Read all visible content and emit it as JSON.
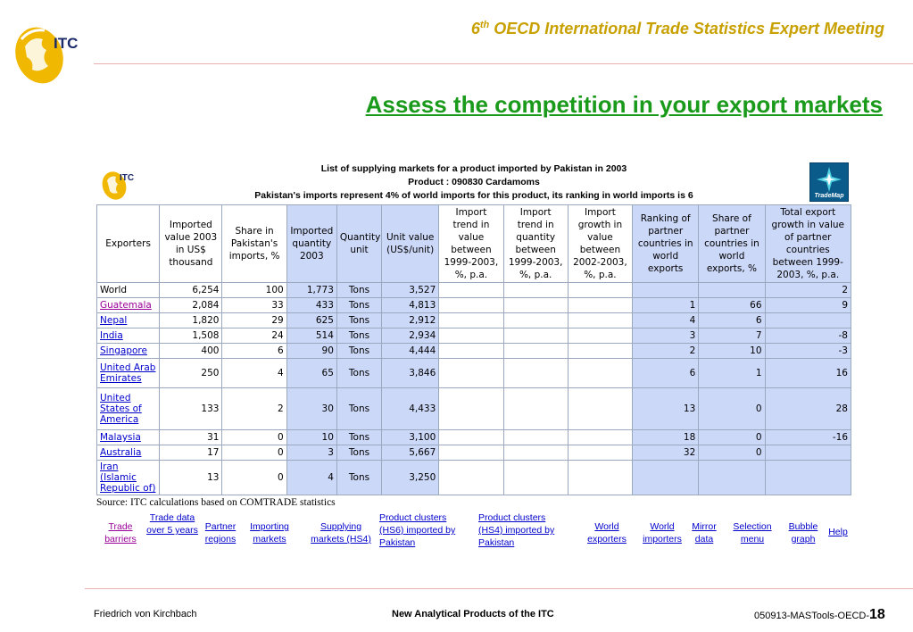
{
  "header": {
    "title_prefix": "6",
    "title_sup": "th",
    "title_rest": " OECD International Trade Statistics Expert Meeting",
    "logo_text": "ITC"
  },
  "slide": {
    "title": "Assess the competition in your export markets"
  },
  "screenshot": {
    "logo_text": "ITC",
    "heading_line1": "List of supplying markets for a product imported by Pakistan in 2003",
    "heading_line2": "Product : 090830 Cardamoms",
    "heading_line3": "Pakistan's imports represent 4% of world imports for this product, its ranking in world imports is 6",
    "trademap_label": "TradeMap",
    "columns": [
      "Exporters",
      "Imported value 2003 in US$ thousand",
      "Share in Pakistan's imports, %",
      "Imported quantity 2003",
      "Quantity unit",
      "Unit value (US$/unit)",
      "Import trend in value between 1999-2003, %, p.a.",
      "Import trend in quantity between 1999-2003, %, p.a.",
      "Import growth in value between 2002-2003, %, p.a.",
      "Ranking of partner countries in world exports",
      "Share of partner countries in world exports, %",
      "Total export growth in value of partner countries between 1999-2003, %, p.a."
    ],
    "rows": [
      {
        "exporter": "World",
        "link": false,
        "value": "6,254",
        "share": "100",
        "qty": "1,773",
        "unit": "Tons",
        "unit_value": "3,527",
        "trend_v": "",
        "trend_q": "",
        "growth": "",
        "rank": "",
        "wshare": "",
        "tgrowth": "2"
      },
      {
        "exporter": "Guatemala",
        "link": true,
        "visited": true,
        "value": "2,084",
        "share": "33",
        "qty": "433",
        "unit": "Tons",
        "unit_value": "4,813",
        "trend_v": "",
        "trend_q": "",
        "growth": "",
        "rank": "1",
        "wshare": "66",
        "tgrowth": "9"
      },
      {
        "exporter": "Nepal",
        "link": true,
        "value": "1,820",
        "share": "29",
        "qty": "625",
        "unit": "Tons",
        "unit_value": "2,912",
        "trend_v": "",
        "trend_q": "",
        "growth": "",
        "rank": "4",
        "wshare": "6",
        "tgrowth": ""
      },
      {
        "exporter": "India",
        "link": true,
        "value": "1,508",
        "share": "24",
        "qty": "514",
        "unit": "Tons",
        "unit_value": "2,934",
        "trend_v": "",
        "trend_q": "",
        "growth": "",
        "rank": "3",
        "wshare": "7",
        "tgrowth": "-8"
      },
      {
        "exporter": "Singapore",
        "link": true,
        "value": "400",
        "share": "6",
        "qty": "90",
        "unit": "Tons",
        "unit_value": "4,444",
        "trend_v": "",
        "trend_q": "",
        "growth": "",
        "rank": "2",
        "wshare": "10",
        "tgrowth": "-3"
      },
      {
        "exporter": "United Arab Emirates",
        "link": true,
        "value": "250",
        "share": "4",
        "qty": "65",
        "unit": "Tons",
        "unit_value": "3,846",
        "trend_v": "",
        "trend_q": "",
        "growth": "",
        "rank": "6",
        "wshare": "1",
        "tgrowth": "16"
      },
      {
        "exporter": "United States of America",
        "link": true,
        "value": "133",
        "share": "2",
        "qty": "30",
        "unit": "Tons",
        "unit_value": "4,433",
        "trend_v": "",
        "trend_q": "",
        "growth": "",
        "rank": "13",
        "wshare": "0",
        "tgrowth": "28"
      },
      {
        "exporter": "Malaysia",
        "link": true,
        "value": "31",
        "share": "0",
        "qty": "10",
        "unit": "Tons",
        "unit_value": "3,100",
        "trend_v": "",
        "trend_q": "",
        "growth": "",
        "rank": "18",
        "wshare": "0",
        "tgrowth": "-16"
      },
      {
        "exporter": "Australia",
        "link": true,
        "value": "17",
        "share": "0",
        "qty": "3",
        "unit": "Tons",
        "unit_value": "5,667",
        "trend_v": "",
        "trend_q": "",
        "growth": "",
        "rank": "32",
        "wshare": "0",
        "tgrowth": ""
      },
      {
        "exporter": "Iran (Islamic Republic of)",
        "link": true,
        "value": "13",
        "share": "0",
        "qty": "4",
        "unit": "Tons",
        "unit_value": "3,250",
        "trend_v": "",
        "trend_q": "",
        "growth": "",
        "rank": "",
        "wshare": "",
        "tgrowth": ""
      }
    ],
    "source": "Source: ITC calculations based on COMTRADE statistics"
  },
  "nav_links": [
    {
      "label": "Trade barriers",
      "purple": true
    },
    {
      "label": "Trade data over 5 years",
      "purple": false
    },
    {
      "label": "Partner regions",
      "purple": false
    },
    {
      "label": "Importing markets",
      "purple": false
    },
    {
      "label": "Supplying markets (HS4)",
      "purple": false
    },
    {
      "label": "Product clusters (HS6) imported by Pakistan",
      "purple": false
    },
    {
      "label": "Product clusters (HS4) imported by Pakistan",
      "purple": false
    },
    {
      "label": "World exporters",
      "purple": false
    },
    {
      "label": "World importers",
      "purple": false
    },
    {
      "label": "Mirror data",
      "purple": false
    },
    {
      "label": "Selection menu",
      "purple": false
    },
    {
      "label": "Bubble graph",
      "purple": false
    },
    {
      "label": "Help",
      "purple": false
    }
  ],
  "footer": {
    "left": "Friedrich von Kirchbach",
    "center": "New Analytical Products of the ITC",
    "right_code": "050913-MASTools-OECD-",
    "page_number": "18"
  },
  "colors": {
    "header_gold": "#c8a000",
    "title_green": "#1a9a1a",
    "table_blue": "#ccd8f8",
    "link_blue": "#0000cc",
    "link_visited": "#990099"
  }
}
